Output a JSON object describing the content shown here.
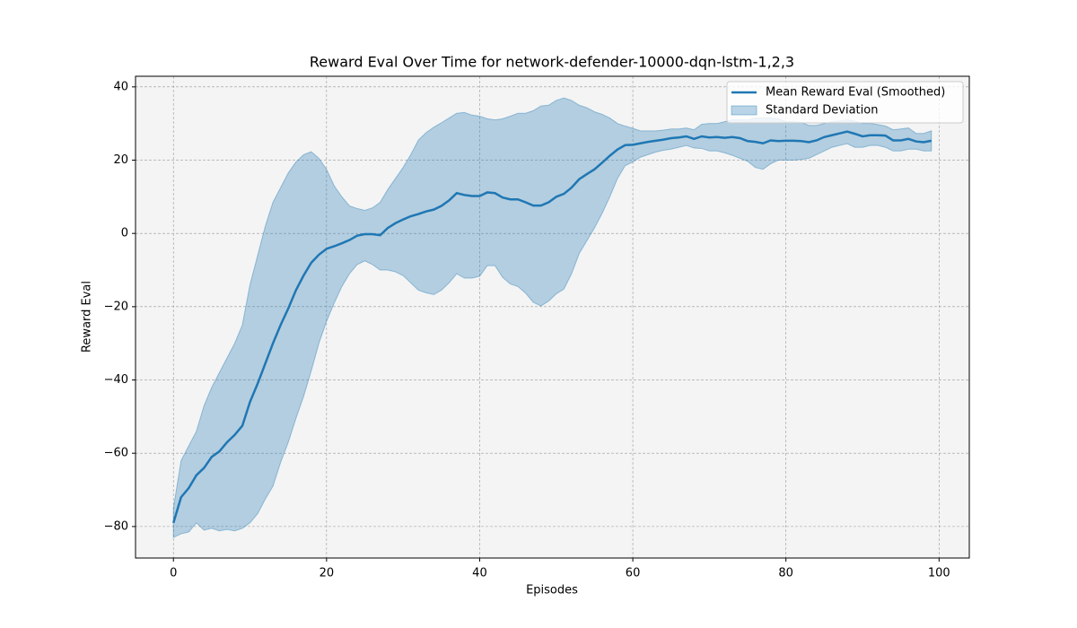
{
  "chart_data": {
    "type": "line",
    "title": "Reward Eval Over Time for network-defender-10000-dqn-lstm-1,2,3",
    "x_label": "Episodes",
    "y_label": "Reward Eval",
    "x": [
      0,
      1,
      2,
      3,
      4,
      5,
      6,
      7,
      8,
      9,
      10,
      11,
      12,
      13,
      14,
      15,
      16,
      17,
      18,
      19,
      20,
      21,
      22,
      23,
      24,
      25,
      26,
      27,
      28,
      29,
      30,
      31,
      32,
      33,
      34,
      35,
      36,
      37,
      38,
      39,
      40,
      41,
      42,
      43,
      44,
      45,
      46,
      47,
      48,
      49,
      50,
      51,
      52,
      53,
      54,
      55,
      56,
      57,
      58,
      59,
      60,
      61,
      62,
      63,
      64,
      65,
      66,
      67,
      68,
      69,
      70,
      71,
      72,
      73,
      74,
      75,
      76,
      77,
      78,
      79,
      80,
      81,
      82,
      83,
      84,
      85,
      86,
      87,
      88,
      89,
      90,
      91,
      92,
      93,
      94,
      95,
      96,
      97,
      98,
      99
    ],
    "series": [
      {
        "name": "Mean Reward Eval (Smoothed)",
        "color": "#1f77b4",
        "values": [
          -79,
          -72,
          -69.5,
          -66,
          -64,
          -61,
          -59.5,
          -57,
          -55,
          -52.5,
          -46,
          -41,
          -35.5,
          -30,
          -25,
          -20.5,
          -15.5,
          -11.5,
          -8,
          -5.8,
          -4.2,
          -3.5,
          -2.7,
          -1.8,
          -0.6,
          -0.2,
          -0.2,
          -0.5,
          1.5,
          2.8,
          3.8,
          4.7,
          5.3,
          6,
          6.5,
          7.5,
          9,
          11,
          10.5,
          10.2,
          10.2,
          11.2,
          11,
          9.8,
          9.3,
          9.3,
          8.5,
          7.6,
          7.6,
          8.5,
          10,
          10.8,
          12.5,
          14.8,
          16.2,
          17.5,
          19.3,
          21.2,
          22.9,
          24.1,
          24.2,
          24.6,
          25,
          25.3,
          25.6,
          26,
          26.2,
          26.5,
          25.8,
          26.5,
          26.2,
          26.3,
          26.1,
          26.3,
          26,
          25.2,
          25,
          24.6,
          25.4,
          25.2,
          25.3,
          25.3,
          25.2,
          24.9,
          25.4,
          26.3,
          26.8,
          27.3,
          27.8,
          27.2,
          26.5,
          26.8,
          26.8,
          26.7,
          25.4,
          25.4,
          25.8,
          25.1,
          24.9,
          25.3
        ]
      },
      {
        "name": "Standard Deviation",
        "color": "#1f77b4",
        "upper": [
          -75,
          -62,
          -58,
          -54,
          -47,
          -42,
          -38,
          -34,
          -30,
          -25,
          -14,
          -6,
          2,
          8.5,
          12.5,
          16.5,
          19.5,
          21.5,
          22.3,
          20.5,
          17.5,
          13,
          10,
          7.5,
          6.8,
          6.3,
          7,
          8.5,
          12,
          15,
          18,
          21.5,
          25.5,
          27.5,
          29,
          30.2,
          31.5,
          32.8,
          33,
          32.3,
          32,
          31.3,
          31,
          31.3,
          32,
          32.8,
          32.8,
          33.5,
          34.8,
          35,
          36.3,
          37,
          36.3,
          35,
          34.3,
          33.2,
          32.5,
          31.5,
          30,
          29.3,
          28.7,
          28,
          28,
          28,
          28.2,
          28.5,
          28.5,
          28.8,
          28.3,
          29.8,
          30,
          30,
          30.5,
          31,
          31,
          31,
          31.5,
          31.5,
          31.5,
          31.3,
          30.5,
          30.5,
          30.3,
          29.5,
          29.5,
          30,
          30.5,
          30.7,
          31,
          30.7,
          30,
          30,
          29.7,
          29.3,
          28.3,
          28.5,
          28.8,
          27.3,
          27.3,
          28
        ],
        "lower": [
          -83,
          -82,
          -81.5,
          -79,
          -81,
          -80.5,
          -81.2,
          -80.8,
          -81.2,
          -80.5,
          -79,
          -76.5,
          -72.5,
          -69,
          -62.5,
          -57,
          -50.5,
          -44.5,
          -37.5,
          -30,
          -24,
          -19,
          -14.5,
          -11,
          -8.5,
          -7.5,
          -8.5,
          -10,
          -10,
          -10.5,
          -11.5,
          -13.5,
          -15.5,
          -16.2,
          -16.7,
          -15.5,
          -13.5,
          -11,
          -12.2,
          -12.2,
          -11.7,
          -8.8,
          -8.8,
          -12,
          -13.8,
          -14.5,
          -16.3,
          -18.8,
          -19.8,
          -18.5,
          -16.5,
          -15.2,
          -11,
          -5.5,
          -2,
          1.5,
          5.5,
          10,
          15,
          18.5,
          19.5,
          20.8,
          21.5,
          22.2,
          22.7,
          23,
          23.5,
          24,
          23.3,
          23.2,
          22.5,
          22.5,
          22,
          21.3,
          20.5,
          19.7,
          18,
          17.5,
          19,
          20,
          20,
          20,
          20.2,
          20.5,
          21.5,
          22.5,
          23.5,
          24,
          24.5,
          23.5,
          23.5,
          24,
          24,
          23.5,
          22.5,
          22.5,
          23,
          23,
          22.5,
          22.5
        ]
      }
    ],
    "xlim": [
      -4.95,
      103.95
    ],
    "ylim": [
      -88.6,
      42.9
    ],
    "xticks": [
      0,
      20,
      40,
      60,
      80,
      100
    ],
    "yticks": [
      {
        "value": -80,
        "label": "−80"
      },
      {
        "value": -60,
        "label": "−60"
      },
      {
        "value": -40,
        "label": "−40"
      },
      {
        "value": -20,
        "label": "−20"
      },
      0,
      20,
      40
    ],
    "grid": true,
    "legend": "upper right"
  }
}
